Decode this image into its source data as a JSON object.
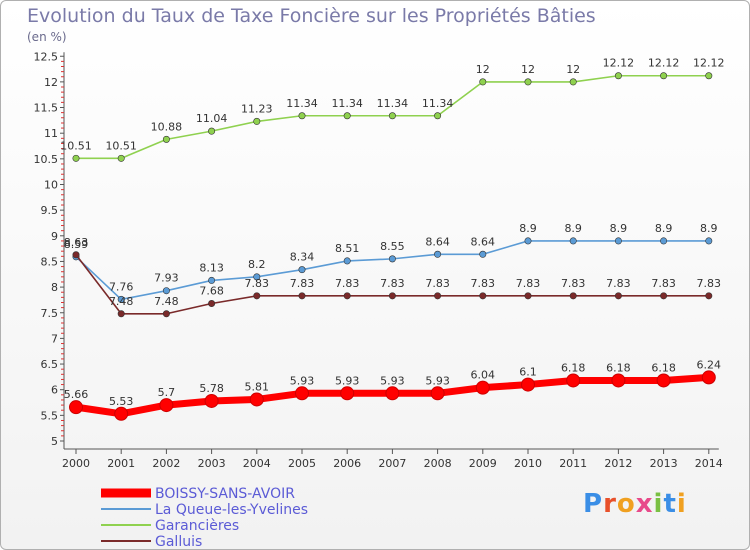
{
  "title": "Evolution du Taux de Taxe Foncière sur les Propriétés Bâties",
  "subtitle": "(en %)",
  "logo": {
    "text": "Proxiti",
    "letter_colors": [
      "#3a8ee6",
      "#e8502a",
      "#f0a020",
      "#e84a8a",
      "#7ac043",
      "#3a8ee6",
      "#f0a020"
    ]
  },
  "chart_data": {
    "type": "line",
    "title": "Evolution du Taux de Taxe Foncière sur les Propriétés Bâties",
    "ylabel": "(en %)",
    "xlabel": "",
    "ylim": [
      5,
      12.5
    ],
    "y_ticks": [
      "5",
      "5.5",
      "6",
      "6.5",
      "7",
      "7.5",
      "8",
      "8.5",
      "9",
      "9.5",
      "10",
      "10.5",
      "11",
      "11.5",
      "12",
      "12.5"
    ],
    "categories": [
      "2000",
      "2001",
      "2002",
      "2003",
      "2004",
      "2005",
      "2006",
      "2007",
      "2008",
      "2009",
      "2010",
      "2011",
      "2012",
      "2013",
      "2014"
    ],
    "grid": false,
    "legend_position": "bottom-left",
    "series": [
      {
        "name": "BOISSY-SANS-AVOIR",
        "color": "#ff0000",
        "values": [
          5.66,
          5.53,
          5.7,
          5.78,
          5.81,
          5.93,
          5.93,
          5.93,
          5.93,
          6.04,
          6.1,
          6.18,
          6.18,
          6.18,
          6.24
        ],
        "labels": [
          "5.66",
          "5.53",
          "5.7",
          "5.78",
          "5.81",
          "5.93",
          "5.93",
          "5.93",
          "5.93",
          "6.04",
          "6.1",
          "6.18",
          "6.18",
          "6.18",
          "6.24"
        ]
      },
      {
        "name": "La Queue-les-Yvelines",
        "color": "#5b9bd5",
        "values": [
          8.59,
          7.76,
          7.93,
          8.13,
          8.2,
          8.34,
          8.51,
          8.55,
          8.64,
          8.64,
          8.9,
          8.9,
          8.9,
          8.9,
          8.9
        ],
        "labels": [
          "8.59",
          "7.76",
          "7.93",
          "8.13",
          "8.2",
          "8.34",
          "8.51",
          "8.55",
          "8.64",
          "8.64",
          "8.9",
          "8.9",
          "8.9",
          "8.9",
          "8.9"
        ]
      },
      {
        "name": "Garancières",
        "color": "#8fd14f",
        "values": [
          10.51,
          10.51,
          10.88,
          11.04,
          11.23,
          11.34,
          11.34,
          11.34,
          11.34,
          12,
          12,
          12,
          12.12,
          12.12,
          12.12
        ],
        "labels": [
          "10.51",
          "10.51",
          "10.88",
          "11.04",
          "11.23",
          "11.34",
          "11.34",
          "11.34",
          "11.34",
          "12",
          "12",
          "12",
          "12.12",
          "12.12",
          "12.12"
        ]
      },
      {
        "name": "Galluis",
        "color": "#7a2a2a",
        "values": [
          8.63,
          7.48,
          7.48,
          7.68,
          7.83,
          7.83,
          7.83,
          7.83,
          7.83,
          7.83,
          7.83,
          7.83,
          7.83,
          7.83,
          7.83
        ],
        "labels": [
          "8.63",
          "7.48",
          "7.48",
          "7.68",
          "7.83",
          "7.83",
          "7.83",
          "7.83",
          "7.83",
          "7.83",
          "7.83",
          "7.83",
          "7.83",
          "7.83",
          "7.83"
        ]
      }
    ]
  }
}
